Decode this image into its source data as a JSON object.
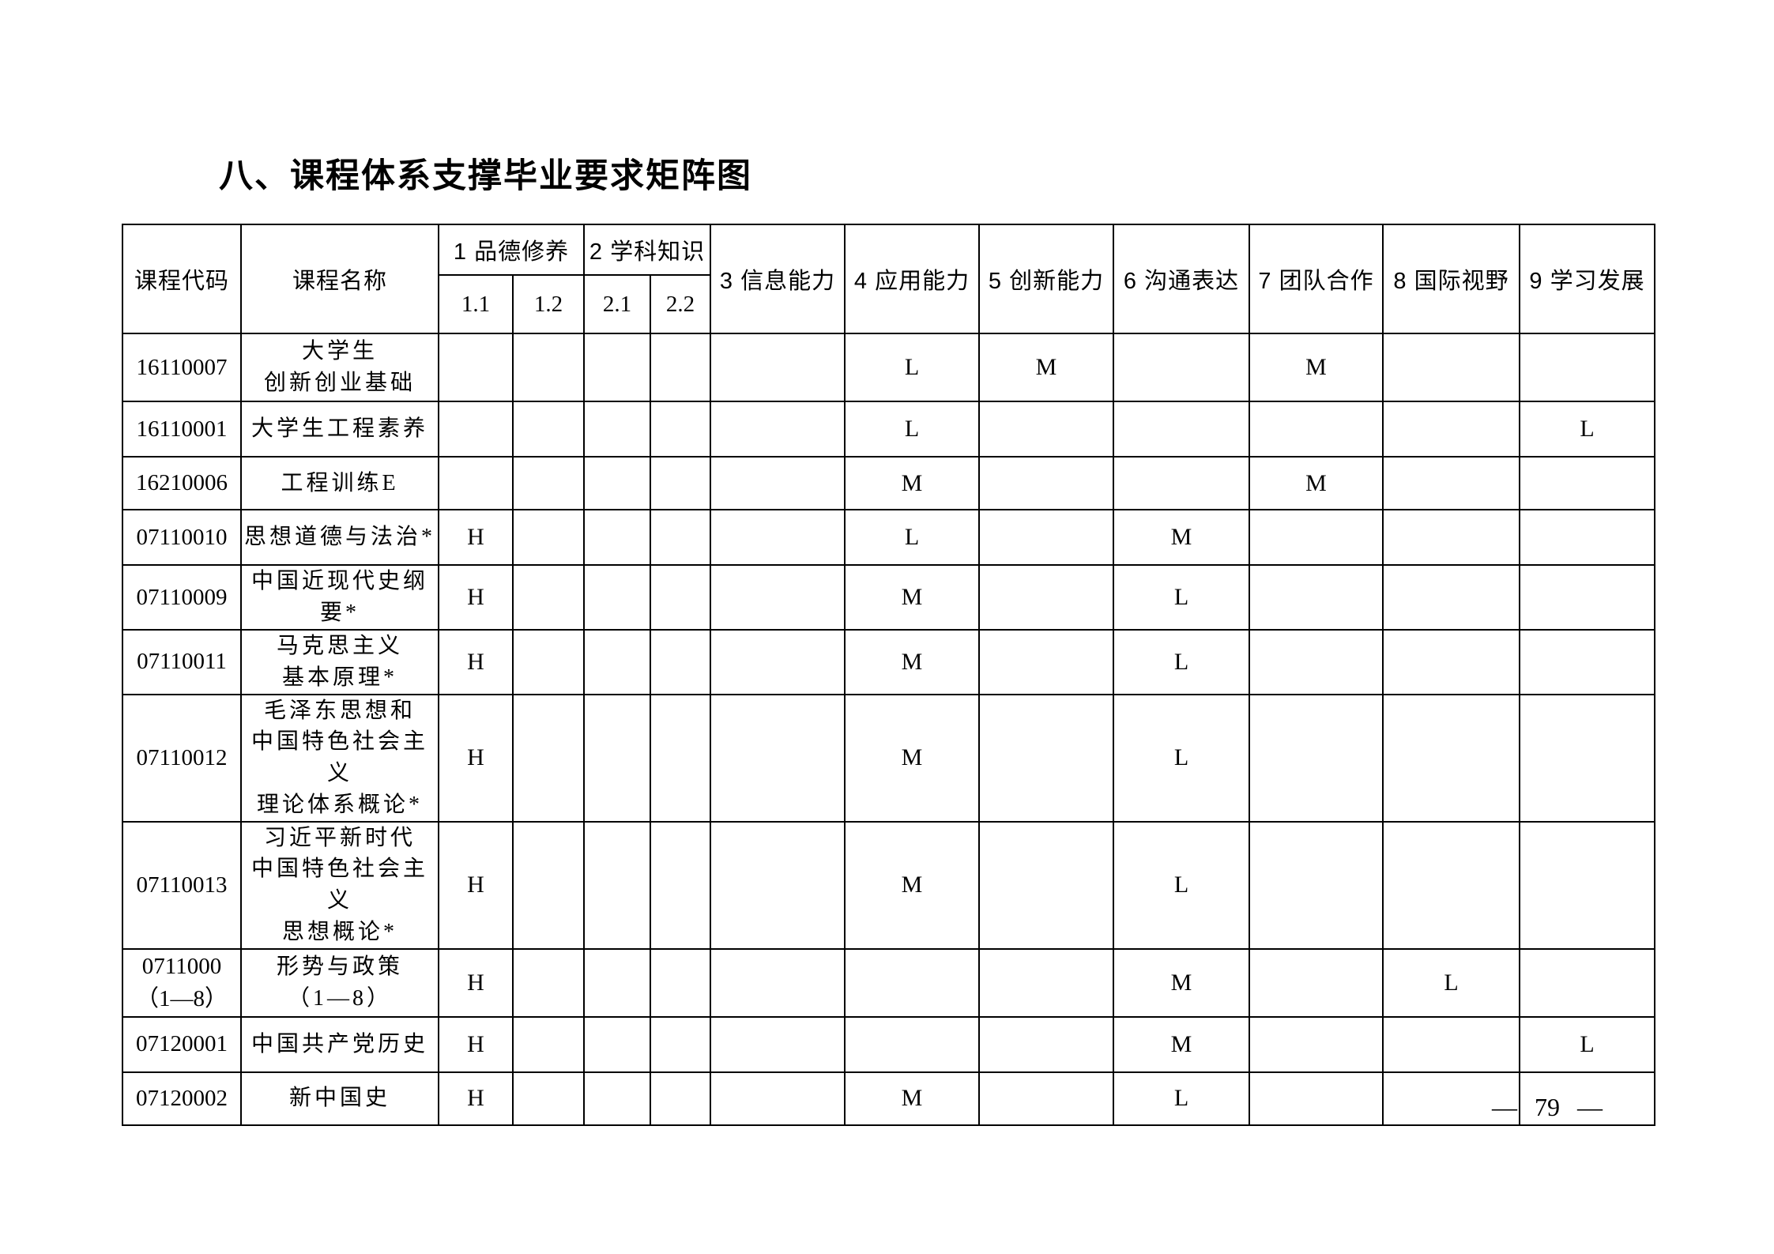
{
  "page": {
    "title": "八、课程体系支撑毕业要求矩阵图",
    "page_number": "— 79 —"
  },
  "table": {
    "corner_headers": [
      "课程代码",
      "课程名称"
    ],
    "group_headers": [
      {
        "label": "1 品德修养",
        "subs": [
          "1.1",
          "1.2"
        ]
      },
      {
        "label": "2 学科知识",
        "subs": [
          "2.1",
          "2.2"
        ]
      }
    ],
    "single_headers": [
      "3 信息能力",
      "4 应用能力",
      "5 创新能力",
      "6 沟通表达",
      "7 团队合作",
      "8 国际视野",
      "9 学习发展"
    ],
    "value_columns": [
      "1.1",
      "1.2",
      "2.1",
      "2.2",
      "3",
      "4",
      "5",
      "6",
      "7",
      "8",
      "9"
    ],
    "legend_levels": [
      "H",
      "M",
      "L"
    ],
    "rows": [
      {
        "code": [
          "16110007"
        ],
        "name": [
          "大学生",
          "创新创业基础"
        ],
        "values": {
          "4": "L",
          "5": "M",
          "7": "M"
        }
      },
      {
        "code": [
          "16110001"
        ],
        "name": [
          "大学生工程素养"
        ],
        "values": {
          "4": "L",
          "9": "L"
        }
      },
      {
        "code": [
          "16210006"
        ],
        "name": [
          "工程训练E"
        ],
        "values": {
          "4": "M",
          "7": "M"
        }
      },
      {
        "code": [
          "07110010"
        ],
        "name": [
          "思想道德与法治*"
        ],
        "values": {
          "1.1": "H",
          "4": "L",
          "6": "M"
        }
      },
      {
        "code": [
          "07110009"
        ],
        "name": [
          "中国近现代史纲要*"
        ],
        "values": {
          "1.1": "H",
          "4": "M",
          "6": "L"
        }
      },
      {
        "code": [
          "07110011"
        ],
        "name": [
          "马克思主义",
          "基本原理*"
        ],
        "values": {
          "1.1": "H",
          "4": "M",
          "6": "L"
        }
      },
      {
        "code": [
          "07110012"
        ],
        "name": [
          "毛泽东思想和",
          "中国特色社会主义",
          "理论体系概论*"
        ],
        "values": {
          "1.1": "H",
          "4": "M",
          "6": "L"
        }
      },
      {
        "code": [
          "07110013"
        ],
        "name": [
          "习近平新时代",
          "中国特色社会主义",
          "思想概论*"
        ],
        "values": {
          "1.1": "H",
          "4": "M",
          "6": "L"
        }
      },
      {
        "code": [
          "0711000",
          "（1—8）"
        ],
        "name": [
          "形势与政策",
          "（1—8）"
        ],
        "values": {
          "1.1": "H",
          "6": "M",
          "8": "L"
        }
      },
      {
        "code": [
          "07120001"
        ],
        "name": [
          "中国共产党历史"
        ],
        "values": {
          "1.1": "H",
          "6": "M",
          "9": "L"
        }
      },
      {
        "code": [
          "07120002"
        ],
        "name": [
          "新中国史"
        ],
        "values": {
          "1.1": "H",
          "4": "M",
          "6": "L"
        }
      }
    ]
  }
}
